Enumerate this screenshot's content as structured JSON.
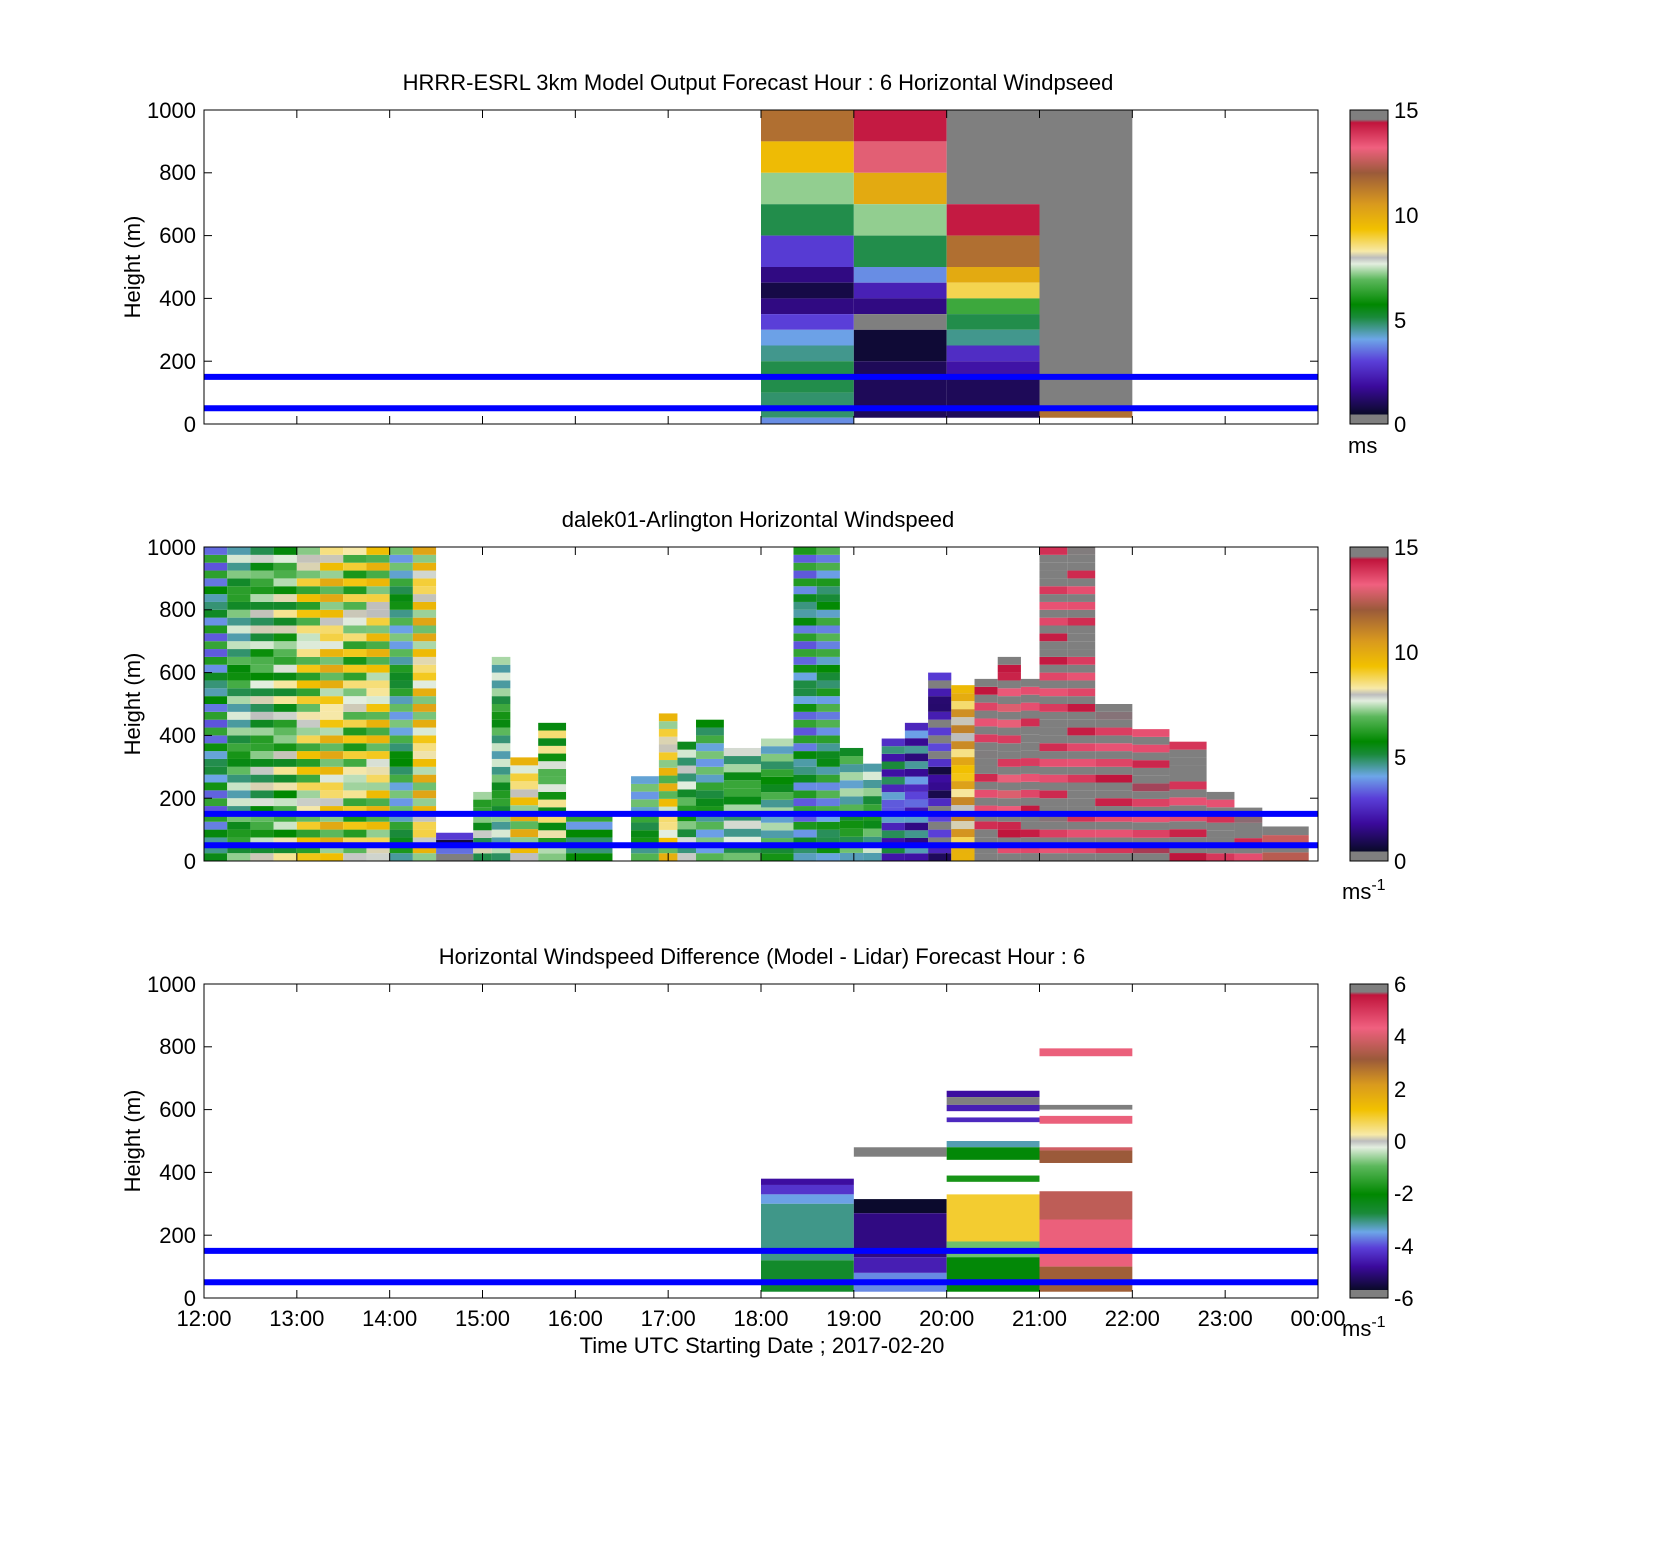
{
  "figure": {
    "xlabel": "Time UTC  Starting Date ; 2017-02-20",
    "hour_ticks": [
      "12:00",
      "13:00",
      "14:00",
      "15:00",
      "16:00",
      "17:00",
      "18:00",
      "19:00",
      "20:00",
      "21:00",
      "22:00",
      "23:00",
      "00:00"
    ],
    "ref_lines_m": [
      50,
      150
    ],
    "ref_line_color": "#0000ff"
  },
  "chart_data": [
    {
      "type": "heatmap",
      "title": "HRRR-ESRL 3km Model Output   Forecast Hour : 6 Horizontal Windpseed",
      "ylabel": "Height (m)",
      "ylim": [
        0,
        1000
      ],
      "yticks": [
        "0",
        "200",
        "400",
        "600",
        "800",
        "1000"
      ],
      "colorbar": {
        "range": [
          0,
          15
        ],
        "ticks": [
          "0",
          "5",
          "10",
          "15"
        ],
        "unit": "ms"
      },
      "columns": [
        {
          "start_hour": 18,
          "end_hour": 19,
          "cells": [
            {
              "bottom": 900,
              "top": 1000,
              "value": 11.5
            },
            {
              "bottom": 800,
              "top": 900,
              "value": 9.5
            },
            {
              "bottom": 700,
              "top": 800,
              "value": 7.2
            },
            {
              "bottom": 600,
              "top": 700,
              "value": 5.0
            },
            {
              "bottom": 500,
              "top": 600,
              "value": 2.9
            },
            {
              "bottom": 450,
              "top": 500,
              "value": 1.5
            },
            {
              "bottom": 400,
              "top": 450,
              "value": 0.8
            },
            {
              "bottom": 350,
              "top": 400,
              "value": 1.5
            },
            {
              "bottom": 300,
              "top": 350,
              "value": 3.0
            },
            {
              "bottom": 250,
              "top": 300,
              "value": 4.0
            },
            {
              "bottom": 200,
              "top": 250,
              "value": 4.6
            },
            {
              "bottom": 100,
              "top": 200,
              "value": 5.0
            },
            {
              "bottom": 20,
              "top": 100,
              "value": 4.8
            },
            {
              "bottom": 0,
              "top": 20,
              "value": 3.8
            }
          ]
        },
        {
          "start_hour": 19,
          "end_hour": 20,
          "cells": [
            {
              "bottom": 900,
              "top": 1000,
              "value": 14.3
            },
            {
              "bottom": 800,
              "top": 900,
              "value": 13.0
            },
            {
              "bottom": 700,
              "top": 800,
              "value": 10.0
            },
            {
              "bottom": 600,
              "top": 700,
              "value": 7.2
            },
            {
              "bottom": 500,
              "top": 600,
              "value": 5.0
            },
            {
              "bottom": 450,
              "top": 500,
              "value": 3.8
            },
            {
              "bottom": 400,
              "top": 450,
              "value": 2.3
            },
            {
              "bottom": 350,
              "top": 400,
              "value": 1.5
            },
            {
              "bottom": 300,
              "top": 350,
              "value": 15.0
            },
            {
              "bottom": 200,
              "top": 300,
              "value": 0.6
            },
            {
              "bottom": 20,
              "top": 200,
              "value": 1.0
            }
          ]
        },
        {
          "start_hour": 20,
          "end_hour": 21,
          "cells": [
            {
              "bottom": 700,
              "top": 1000,
              "value": 15.0
            },
            {
              "bottom": 600,
              "top": 700,
              "value": 14.3
            },
            {
              "bottom": 500,
              "top": 600,
              "value": 11.5
            },
            {
              "bottom": 450,
              "top": 500,
              "value": 10.0
            },
            {
              "bottom": 400,
              "top": 450,
              "value": 8.8
            },
            {
              "bottom": 350,
              "top": 400,
              "value": 6.5
            },
            {
              "bottom": 300,
              "top": 350,
              "value": 5.0
            },
            {
              "bottom": 250,
              "top": 300,
              "value": 4.6
            },
            {
              "bottom": 200,
              "top": 250,
              "value": 2.6
            },
            {
              "bottom": 150,
              "top": 200,
              "value": 2.0
            },
            {
              "bottom": 20,
              "top": 150,
              "value": 1.0
            }
          ]
        },
        {
          "start_hour": 21,
          "end_hour": 22,
          "cells": [
            {
              "bottom": 50,
              "top": 1000,
              "value": 15.0
            },
            {
              "bottom": 20,
              "top": 50,
              "value": 11.5
            }
          ]
        }
      ]
    },
    {
      "type": "heatmap",
      "title": "dalek01-Arlington  Horizontal Windspeed",
      "ylabel": "Height (m)",
      "ylim": [
        0,
        1000
      ],
      "yticks": [
        "0",
        "200",
        "400",
        "600",
        "800",
        "1000"
      ],
      "colorbar": {
        "range": [
          0,
          15
        ],
        "ticks": [
          "0",
          "5",
          "10",
          "15"
        ],
        "unit": "ms",
        "unit_exp": "-1"
      },
      "columns": [
        {
          "start_hour": 12.0,
          "end_hour": 12.25,
          "top": 1000,
          "value": 4.8
        },
        {
          "start_hour": 12.25,
          "end_hour": 12.5,
          "top": 1000,
          "value": 6.0
        },
        {
          "start_hour": 12.5,
          "end_hour": 12.75,
          "top": 1000,
          "value": 6.5
        },
        {
          "start_hour": 12.75,
          "end_hour": 13.0,
          "top": 1000,
          "value": 6.8
        },
        {
          "start_hour": 13.0,
          "end_hour": 13.25,
          "top": 1000,
          "value": 7.8
        },
        {
          "start_hour": 13.25,
          "end_hour": 13.5,
          "top": 1000,
          "value": 8.5
        },
        {
          "start_hour": 13.5,
          "end_hour": 13.75,
          "top": 1000,
          "value": 7.6
        },
        {
          "start_hour": 13.75,
          "end_hour": 14.0,
          "top": 1000,
          "value": 8.2
        },
        {
          "start_hour": 14.0,
          "end_hour": 14.25,
          "top": 1000,
          "value": 5.5
        },
        {
          "start_hour": 14.25,
          "end_hour": 14.5,
          "top": 1000,
          "value": 8.6
        },
        {
          "start_hour": 14.5,
          "end_hour": 14.9,
          "top": 90,
          "value": 2.0
        },
        {
          "start_hour": 14.9,
          "end_hour": 15.1,
          "top": 220,
          "value": 6.5
        },
        {
          "start_hour": 15.1,
          "end_hour": 15.3,
          "top": 650,
          "value": 6.0
        },
        {
          "start_hour": 15.3,
          "end_hour": 15.6,
          "top": 330,
          "value": 8.5
        },
        {
          "start_hour": 15.6,
          "end_hour": 15.9,
          "top": 440,
          "value": 7.0
        },
        {
          "start_hour": 15.9,
          "end_hour": 16.4,
          "top": 150,
          "value": 5.0
        },
        {
          "start_hour": 16.6,
          "end_hour": 16.9,
          "top": 270,
          "value": 5.5
        },
        {
          "start_hour": 16.9,
          "end_hour": 17.1,
          "top": 470,
          "value": 8.3
        },
        {
          "start_hour": 17.1,
          "end_hour": 17.3,
          "top": 380,
          "value": 6.3
        },
        {
          "start_hour": 17.3,
          "end_hour": 17.6,
          "top": 450,
          "value": 5.5
        },
        {
          "start_hour": 17.6,
          "end_hour": 18.0,
          "top": 360,
          "value": 6.2
        },
        {
          "start_hour": 18.0,
          "end_hour": 18.35,
          "top": 390,
          "value": 5.8
        },
        {
          "start_hour": 18.35,
          "end_hour": 18.6,
          "top": 1000,
          "value": 4.8
        },
        {
          "start_hour": 18.6,
          "end_hour": 18.85,
          "top": 1000,
          "value": 5.2
        },
        {
          "start_hour": 18.85,
          "end_hour": 19.1,
          "top": 360,
          "value": 5.8
        },
        {
          "start_hour": 19.1,
          "end_hour": 19.3,
          "top": 310,
          "value": 6.0
        },
        {
          "start_hour": 19.3,
          "end_hour": 19.55,
          "top": 390,
          "value": 3.5
        },
        {
          "start_hour": 19.55,
          "end_hour": 19.8,
          "top": 440,
          "value": 3.0
        },
        {
          "start_hour": 19.8,
          "end_hour": 20.05,
          "top": 600,
          "value": 1.5
        },
        {
          "start_hour": 20.05,
          "end_hour": 20.3,
          "top": 560,
          "value": 9.5
        },
        {
          "start_hour": 20.3,
          "end_hour": 20.55,
          "top": 580,
          "value": 15.0
        },
        {
          "start_hour": 20.55,
          "end_hour": 20.8,
          "top": 650,
          "value": 14.5
        },
        {
          "start_hour": 20.8,
          "end_hour": 21.0,
          "top": 580,
          "value": 15.0
        },
        {
          "start_hour": 21.0,
          "end_hour": 21.3,
          "top": 1000,
          "value": 15.0
        },
        {
          "start_hour": 21.3,
          "end_hour": 21.6,
          "top": 1000,
          "value": 15.0
        },
        {
          "start_hour": 21.6,
          "end_hour": 22.0,
          "top": 500,
          "value": 15.0
        },
        {
          "start_hour": 22.0,
          "end_hour": 22.4,
          "top": 420,
          "value": 15.0
        },
        {
          "start_hour": 22.4,
          "end_hour": 22.8,
          "top": 380,
          "value": 15.0
        },
        {
          "start_hour": 22.8,
          "end_hour": 23.1,
          "top": 220,
          "value": 15.0
        },
        {
          "start_hour": 23.1,
          "end_hour": 23.4,
          "top": 170,
          "value": 15.0
        },
        {
          "start_hour": 23.4,
          "end_hour": 23.9,
          "top": 110,
          "value": 14.0
        }
      ]
    },
    {
      "type": "heatmap",
      "title": "Horizontal Windspeed Difference (Model - Lidar) Forecast Hour : 6",
      "ylabel": "Height (m)",
      "ylim": [
        0,
        1000
      ],
      "yticks": [
        "0",
        "200",
        "400",
        "600",
        "800",
        "1000"
      ],
      "colorbar": {
        "range": [
          -6,
          6
        ],
        "ticks": [
          "-6",
          "-4",
          "-2",
          "0",
          "2",
          "4",
          "6"
        ],
        "unit": "ms",
        "unit_exp": "-1"
      },
      "columns": [
        {
          "start_hour": 18,
          "end_hour": 19,
          "cells": [
            {
              "bottom": 360,
              "top": 380,
              "value": -4.5
            },
            {
              "bottom": 330,
              "top": 360,
              "value": -3.8
            },
            {
              "bottom": 300,
              "top": 330,
              "value": -2.8
            },
            {
              "bottom": 120,
              "top": 300,
              "value": -2.3
            },
            {
              "bottom": 20,
              "top": 120,
              "value": -1.8
            }
          ]
        },
        {
          "start_hour": 19,
          "end_hour": 20,
          "cells": [
            {
              "bottom": 450,
              "top": 480,
              "value": 6.0
            },
            {
              "bottom": 270,
              "top": 315,
              "value": -5.6
            },
            {
              "bottom": 130,
              "top": 270,
              "value": -4.8
            },
            {
              "bottom": 80,
              "top": 130,
              "value": -4.2
            },
            {
              "bottom": 20,
              "top": 80,
              "value": -3.0
            }
          ]
        },
        {
          "start_hour": 20,
          "end_hour": 21,
          "cells": [
            {
              "bottom": 640,
              "top": 660,
              "value": -4.5
            },
            {
              "bottom": 615,
              "top": 640,
              "value": 6.0
            },
            {
              "bottom": 595,
              "top": 615,
              "value": -4.2
            },
            {
              "bottom": 560,
              "top": 575,
              "value": -4.0
            },
            {
              "bottom": 480,
              "top": 500,
              "value": -2.5
            },
            {
              "bottom": 440,
              "top": 480,
              "value": -1.5
            },
            {
              "bottom": 370,
              "top": 390,
              "value": -1.2
            },
            {
              "bottom": 180,
              "top": 330,
              "value": 1.2
            },
            {
              "bottom": 130,
              "top": 180,
              "value": -0.4
            },
            {
              "bottom": 20,
              "top": 130,
              "value": -1.5
            }
          ]
        },
        {
          "start_hour": 21,
          "end_hour": 22,
          "cells": [
            {
              "bottom": 770,
              "top": 795,
              "value": 4.5
            },
            {
              "bottom": 600,
              "top": 615,
              "value": 6.0
            },
            {
              "bottom": 555,
              "top": 580,
              "value": 4.5
            },
            {
              "bottom": 470,
              "top": 480,
              "value": 4.2
            },
            {
              "bottom": 430,
              "top": 470,
              "value": 3.6
            },
            {
              "bottom": 250,
              "top": 340,
              "value": 4.0
            },
            {
              "bottom": 100,
              "top": 250,
              "value": 4.5
            },
            {
              "bottom": 20,
              "top": 100,
              "value": 3.5
            }
          ]
        }
      ]
    }
  ]
}
